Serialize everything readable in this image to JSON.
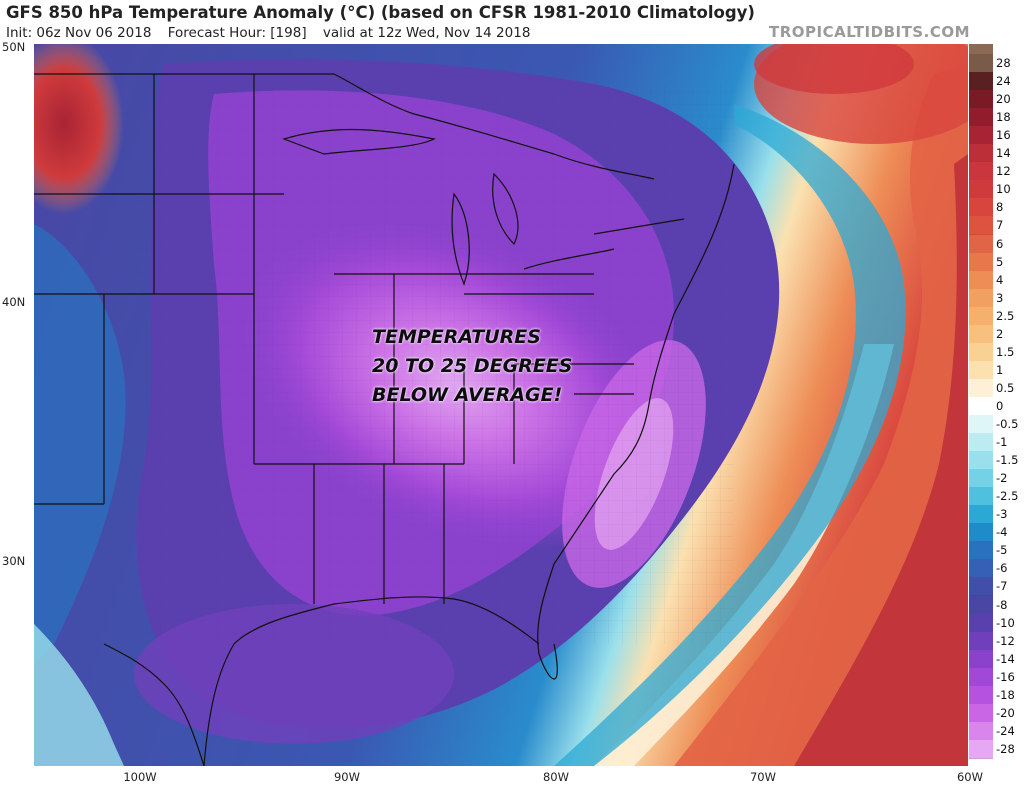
{
  "header": {
    "title": "GFS 850 hPa Temperature Anomaly (°C) (based on CFSR 1981-2010 Climatology)",
    "init": "Init: 06z Nov 06 2018",
    "forecast_hour": "Forecast Hour: [198]",
    "valid": "valid at 12z Wed, Nov 14 2018",
    "site": "TROPICALTIDBITS.COM"
  },
  "axes": {
    "lat_labels": [
      "50N",
      "40N",
      "30N"
    ],
    "lon_labels": [
      "100W",
      "90W",
      "80W",
      "70W",
      "60W"
    ]
  },
  "annotation": {
    "lines": [
      "TEMPERATURES",
      "20 TO 25 DEGREES",
      "BELOW AVERAGE!"
    ]
  },
  "legend": {
    "labels": [
      "28",
      "24",
      "20",
      "18",
      "16",
      "14",
      "12",
      "10",
      "8",
      "7",
      "6",
      "5",
      "4",
      "3",
      "2.5",
      "2",
      "1.5",
      "1",
      "0.5",
      "0",
      "-0.5",
      "-1",
      "-1.5",
      "-2",
      "-2.5",
      "-3",
      "-4",
      "-5",
      "-6",
      "-7",
      "-8",
      "-10",
      "-12",
      "-14",
      "-16",
      "-18",
      "-20",
      "-24",
      "-28"
    ],
    "colors": [
      "#7a5a48",
      "#5a1f20",
      "#7a1a24",
      "#921c2c",
      "#a82434",
      "#bc2e38",
      "#c9363e",
      "#cf3a3c",
      "#d8453e",
      "#de5340",
      "#e26446",
      "#e8784c",
      "#ee8d56",
      "#f2a062",
      "#f5b06e",
      "#f7c07e",
      "#f9d192",
      "#fbe1b0",
      "#fdf0d6",
      "#ffffff",
      "#dff6f8",
      "#bcecf2",
      "#99e0ec",
      "#74d2e6",
      "#4fc0de",
      "#2ca8d4",
      "#1f8cca",
      "#2a72bf",
      "#3660b6",
      "#4050aa",
      "#4a46a4",
      "#5a40ae",
      "#7040bc",
      "#8a42cc",
      "#a248d8",
      "#b652e0",
      "#c866e6",
      "#d886ec",
      "#e6a8f2"
    ],
    "top_color": "#8a6a55"
  }
}
